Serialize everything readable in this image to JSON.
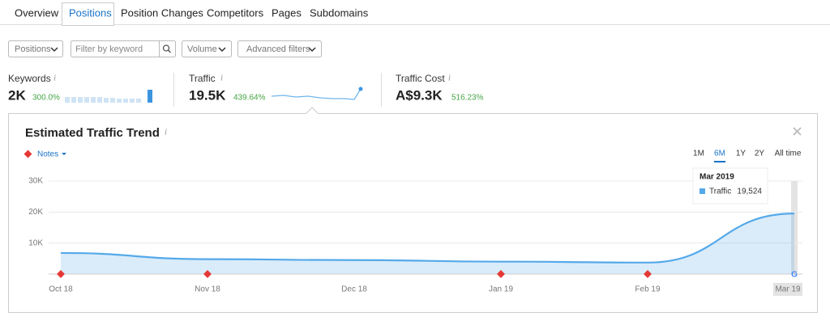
{
  "tabs": [
    "Overview",
    "Positions",
    "Position Changes",
    "Competitors",
    "Pages",
    "Subdomains"
  ],
  "filters": [
    "Positions",
    "Filter by keyword",
    "Volume",
    "Advanced filters"
  ],
  "metrics": [
    {
      "label": "Keywords",
      "value": "2K",
      "change": "300.0%"
    },
    {
      "label": "Traffic",
      "value": "19.5K",
      "change": "439.64%"
    },
    {
      "label": "Traffic Cost",
      "value": "A$9.3K",
      "change": "516.23%"
    }
  ],
  "chart_data": {
    "type": "area",
    "title": "Estimated Traffic Trend",
    "notes_label": "Notes",
    "ranges": [
      "1M",
      "6M",
      "1Y",
      "2Y",
      "All time"
    ],
    "x": [
      "Oct 18",
      "Nov 18",
      "Dec 18",
      "Jan 19",
      "Feb 19",
      "Mar 19"
    ],
    "series": [
      {
        "name": "Traffic",
        "color": "#55a9e9",
        "values": [
          6800,
          4800,
          4500,
          4000,
          3700,
          19524
        ],
        "value_labels": [
          null,
          null,
          null,
          null,
          null,
          "19,524"
        ]
      }
    ],
    "tooltip_title": "Mar 2019",
    "ylim": [
      0,
      30000
    ],
    "yticks": [
      {
        "value": 10000,
        "label": "10K"
      },
      {
        "value": 20000,
        "label": "20K"
      },
      {
        "value": 30000,
        "label": "30K"
      }
    ],
    "grid": true
  }
}
